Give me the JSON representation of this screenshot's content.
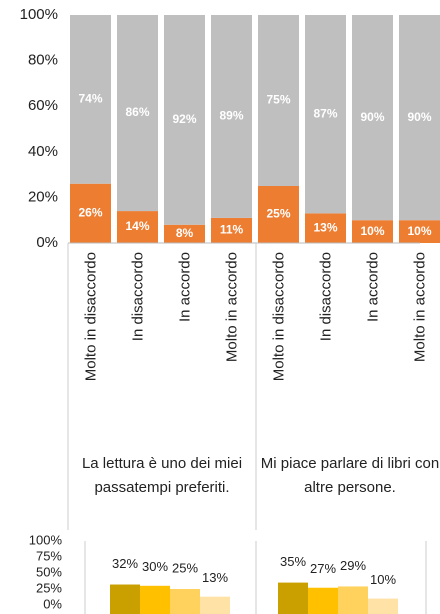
{
  "chart_data": [
    {
      "type": "stacked-bar",
      "categories": [
        "Molto in disaccordo",
        "In disaccordo",
        "In accordo",
        "Molto in accordo",
        "Molto in disaccordo",
        "In disaccordo",
        "In accordo",
        "Molto in accordo"
      ],
      "groups": [
        "La lettura è uno dei miei passatempi preferiti.",
        "Mi piace parlare di libri con altre persone."
      ],
      "series": [
        {
          "color": "#ed7d31",
          "values": [
            26,
            14,
            8,
            11,
            25,
            13,
            10,
            10
          ],
          "value_labels": [
            "26%",
            "14%",
            "8%",
            "11%",
            "25%",
            "13%",
            "10%",
            "10%"
          ]
        },
        {
          "color": "#bfbfbf",
          "values": [
            74,
            86,
            92,
            89,
            75,
            87,
            90,
            90
          ],
          "value_labels": [
            "74%",
            "86%",
            "92%",
            "89%",
            "75%",
            "87%",
            "90%",
            "90%"
          ]
        }
      ],
      "ylim": [
        0,
        100
      ],
      "yticks": [
        {
          "value": 0,
          "label": "0%"
        },
        {
          "value": 20,
          "label": "20%"
        },
        {
          "value": 40,
          "label": "40%"
        },
        {
          "value": 60,
          "label": "60%"
        },
        {
          "value": 80,
          "label": "80%"
        },
        {
          "value": 100,
          "label": "100%"
        }
      ]
    },
    {
      "type": "grouped-bar",
      "categories": [
        null,
        null
      ],
      "series": [
        {
          "color": "#c9a000",
          "values": [
            32,
            35
          ],
          "value_labels": [
            "32%",
            "35%"
          ]
        },
        {
          "color": "#ffc000",
          "values": [
            30,
            27
          ],
          "value_labels": [
            "30%",
            "27%"
          ]
        },
        {
          "color": "#ffd25e",
          "values": [
            25,
            29
          ],
          "value_labels": [
            "25%",
            "29%"
          ]
        },
        {
          "color": "#ffe2a6",
          "values": [
            13,
            10
          ],
          "value_labels": [
            "13%",
            "10%"
          ]
        }
      ],
      "ylim": [
        0,
        100
      ],
      "yticks": [
        {
          "value": 0,
          "label": "0%"
        },
        {
          "value": 25,
          "label": "25%"
        },
        {
          "value": 50,
          "label": "50%"
        },
        {
          "value": 75,
          "label": "75%"
        },
        {
          "value": 100,
          "label": "100%"
        }
      ]
    }
  ]
}
